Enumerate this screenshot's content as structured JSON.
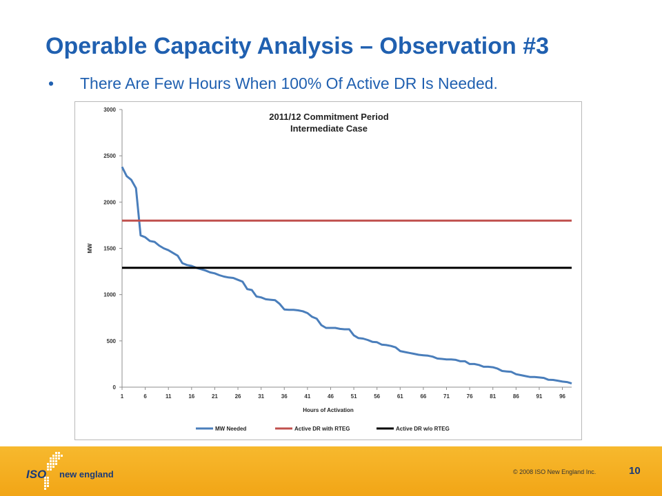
{
  "slide": {
    "title": "Operable Capacity Analysis – Observation #3",
    "bullet": "•",
    "bullet_text": "There Are Few Hours When 100% Of Active DR Is Needed."
  },
  "footer": {
    "logo_iso": "ISO",
    "logo_ne": "new england",
    "copyright": "© 2008 ISO New England Inc.",
    "page_number": "10"
  },
  "chart_data": {
    "type": "line",
    "title": [
      "2011/12 Commitment Period",
      "Intermediate Case"
    ],
    "xlabel": "Hours  of Activation",
    "ylabel": "MW",
    "ylim": [
      0,
      3000
    ],
    "yticks": [
      0,
      500,
      1000,
      1500,
      2000,
      2500,
      3000
    ],
    "xticks": [
      1,
      6,
      11,
      16,
      21,
      26,
      31,
      36,
      41,
      46,
      51,
      56,
      61,
      66,
      71,
      76,
      81,
      86,
      91,
      96
    ],
    "xlim": [
      1,
      98
    ],
    "grid": false,
    "legend_position": "bottom",
    "series": [
      {
        "name": "MW Needed",
        "color": "#4a7ebb",
        "x": [
          1,
          2,
          3,
          4,
          5,
          6,
          7,
          8,
          9,
          10,
          11,
          12,
          13,
          14,
          15,
          16,
          17,
          18,
          19,
          20,
          21,
          22,
          23,
          24,
          25,
          26,
          27,
          28,
          29,
          30,
          31,
          32,
          33,
          34,
          35,
          36,
          37,
          38,
          39,
          40,
          41,
          42,
          43,
          44,
          45,
          46,
          47,
          48,
          49,
          50,
          51,
          52,
          53,
          54,
          55,
          56,
          57,
          58,
          59,
          60,
          61,
          62,
          63,
          64,
          65,
          66,
          67,
          68,
          69,
          70,
          71,
          72,
          73,
          74,
          75,
          76,
          77,
          78,
          79,
          80,
          81,
          82,
          83,
          84,
          85,
          86,
          87,
          88,
          89,
          90,
          91,
          92,
          93,
          94,
          95,
          96,
          97,
          98
        ],
        "values": [
          2380,
          2280,
          2240,
          2150,
          1640,
          1620,
          1580,
          1570,
          1530,
          1500,
          1480,
          1450,
          1420,
          1340,
          1320,
          1310,
          1290,
          1275,
          1260,
          1240,
          1230,
          1210,
          1195,
          1185,
          1180,
          1160,
          1140,
          1060,
          1050,
          980,
          970,
          950,
          945,
          940,
          900,
          840,
          835,
          835,
          830,
          820,
          800,
          760,
          740,
          670,
          640,
          640,
          640,
          630,
          625,
          625,
          560,
          530,
          525,
          510,
          490,
          485,
          460,
          455,
          445,
          430,
          390,
          380,
          370,
          360,
          350,
          345,
          340,
          330,
          310,
          305,
          300,
          300,
          295,
          280,
          280,
          250,
          250,
          240,
          220,
          220,
          215,
          200,
          175,
          170,
          165,
          140,
          130,
          120,
          110,
          110,
          105,
          100,
          80,
          78,
          70,
          60,
          55,
          40
        ]
      },
      {
        "name": "Active DR with RTEG",
        "color": "#c0504d",
        "x": [
          1,
          98
        ],
        "values": [
          1800,
          1800
        ]
      },
      {
        "name": "Active DR w/o RTEG",
        "color": "#000000",
        "x": [
          1,
          98
        ],
        "values": [
          1290,
          1290
        ]
      }
    ]
  }
}
